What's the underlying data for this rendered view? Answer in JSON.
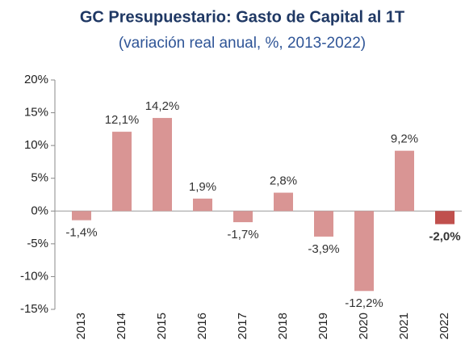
{
  "chart_data": {
    "type": "bar",
    "title": "GC Presupuestario: Gasto de Capital al 1T",
    "subtitle": "(variación real anual, %, 2013-2022)",
    "categories": [
      "2013",
      "2014",
      "2015",
      "2016",
      "2017",
      "2018",
      "2019",
      "2020",
      "2021",
      "2022"
    ],
    "values": [
      -1.4,
      12.1,
      14.2,
      1.9,
      -1.7,
      2.8,
      -3.9,
      -12.2,
      9.2,
      -2.0
    ],
    "value_labels": [
      "-1,4%",
      "12,1%",
      "14,2%",
      "1,9%",
      "-1,7%",
      "2,8%",
      "-3,9%",
      "-12,2%",
      "9,2%",
      "-2,0%"
    ],
    "colors": [
      "#d99594",
      "#d99594",
      "#d99594",
      "#d99594",
      "#d99594",
      "#d99594",
      "#d99594",
      "#d99594",
      "#d99594",
      "#c0504d"
    ],
    "bold_labels": [
      false,
      false,
      false,
      false,
      false,
      false,
      false,
      false,
      false,
      true
    ],
    "ylim": [
      -15,
      20
    ],
    "yticks": [
      {
        "value": -15,
        "label": "-15%"
      },
      {
        "value": -10,
        "label": "-10%"
      },
      {
        "value": -5,
        "label": "-5%"
      },
      {
        "value": 0,
        "label": "0%"
      },
      {
        "value": 5,
        "label": "5%"
      },
      {
        "value": 10,
        "label": "10%"
      },
      {
        "value": 15,
        "label": "15%"
      },
      {
        "value": 20,
        "label": "20%"
      }
    ],
    "grid": false
  }
}
